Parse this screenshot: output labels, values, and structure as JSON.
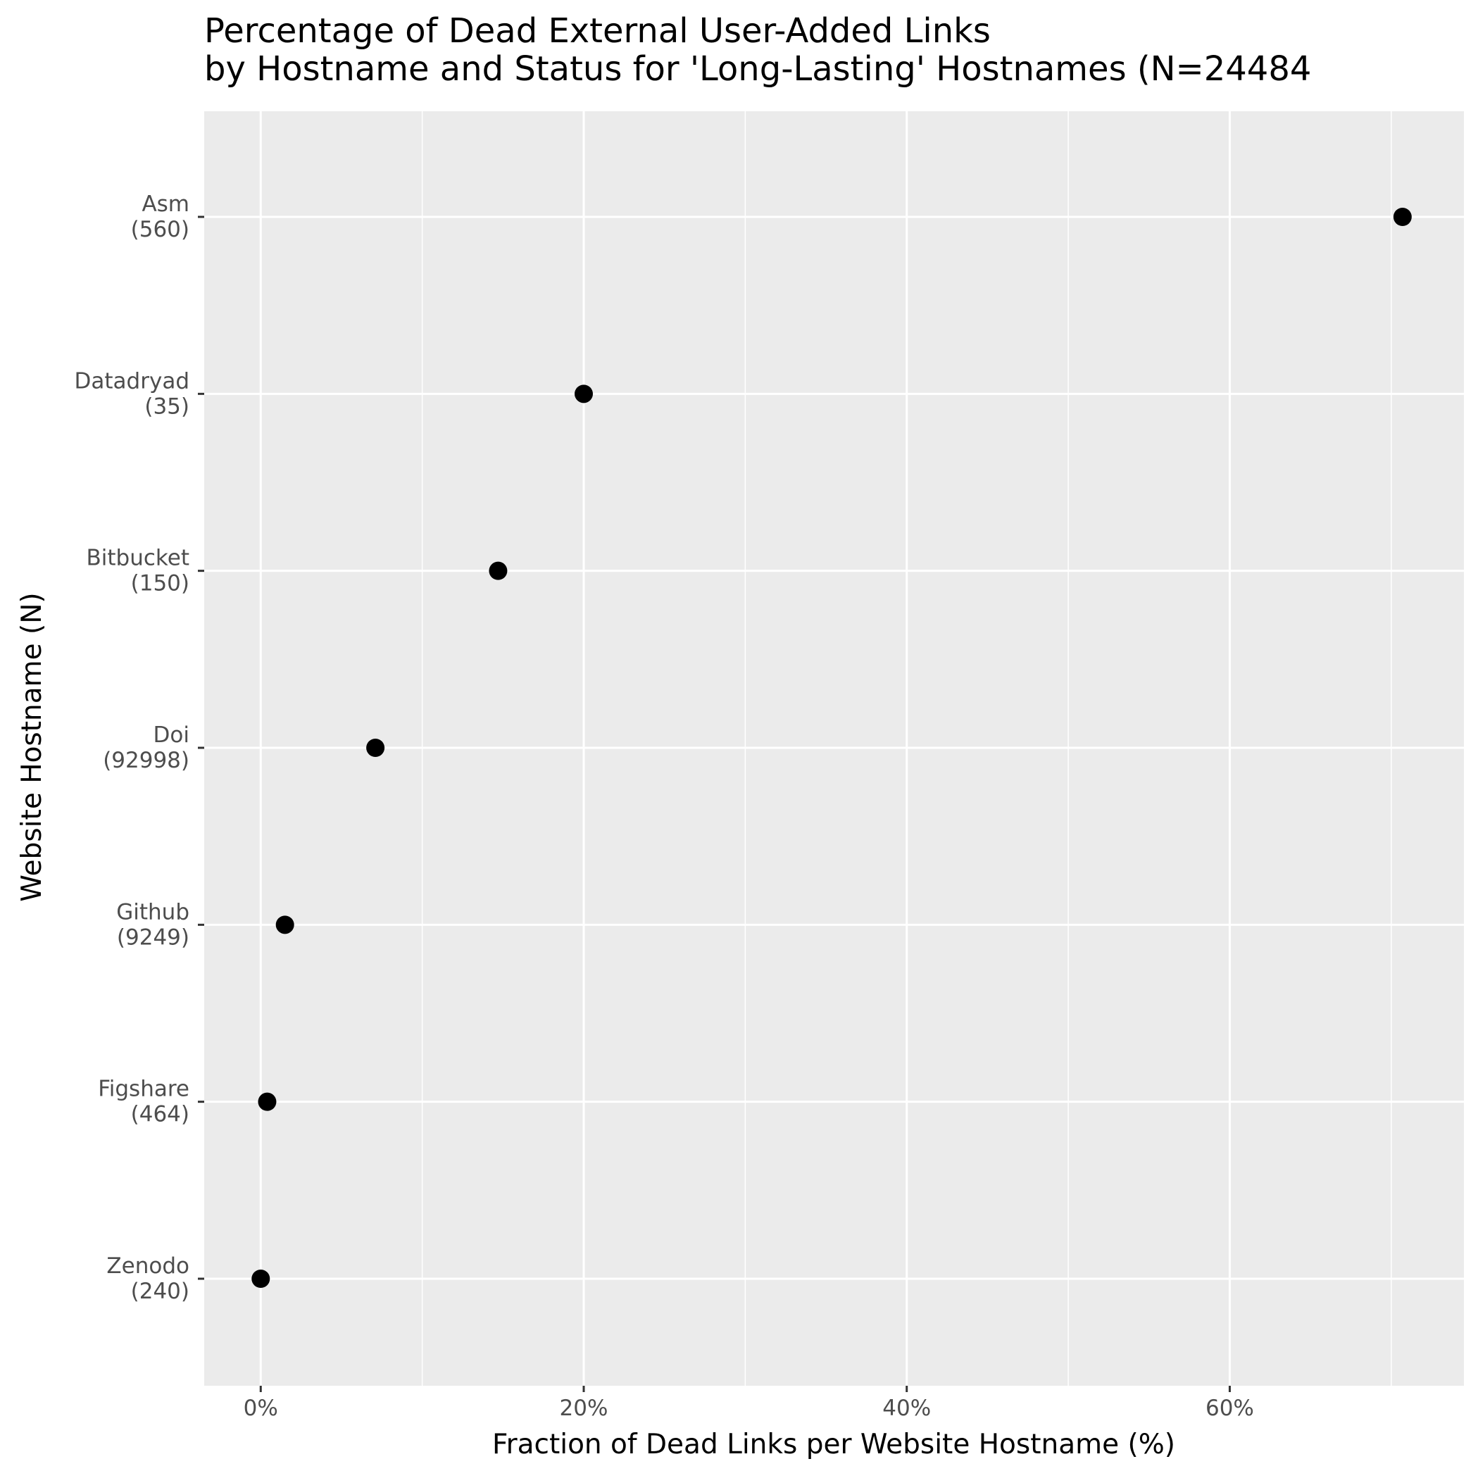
{
  "chart_data": {
    "type": "scatter",
    "title": "Percentage of Dead External User-Added Links",
    "subtitle": "by Hostname and Status for 'Long-Lasting' Hostnames (N=24484",
    "xlabel": "Fraction of Dead Links per Website Hostname (%)",
    "ylabel": "Website Hostname (N)",
    "xlim": [
      -3.5,
      74.5
    ],
    "x_ticks": [
      {
        "value": 0,
        "label": "0%"
      },
      {
        "value": 20,
        "label": "20%"
      },
      {
        "value": 40,
        "label": "40%"
      },
      {
        "value": 60,
        "label": "60%"
      }
    ],
    "x_minor_ticks": [
      10,
      30,
      50,
      70
    ],
    "categories": [
      {
        "name": "Asm",
        "n": "(560)"
      },
      {
        "name": "Datadryad",
        "n": "(35)"
      },
      {
        "name": "Bitbucket",
        "n": "(150)"
      },
      {
        "name": "Doi",
        "n": "(92998)"
      },
      {
        "name": "Github",
        "n": "(9249)"
      },
      {
        "name": "Figshare",
        "n": "(464)"
      },
      {
        "name": "Zenodo",
        "n": "(240)"
      }
    ],
    "values": [
      70.7,
      20.0,
      14.7,
      7.1,
      1.5,
      0.4,
      0.0
    ],
    "grid": true,
    "panel_background": "#ebebeb",
    "grid_color": "#ffffff",
    "point_color": "#000000",
    "tick_label_color": "#4d4d4d"
  }
}
